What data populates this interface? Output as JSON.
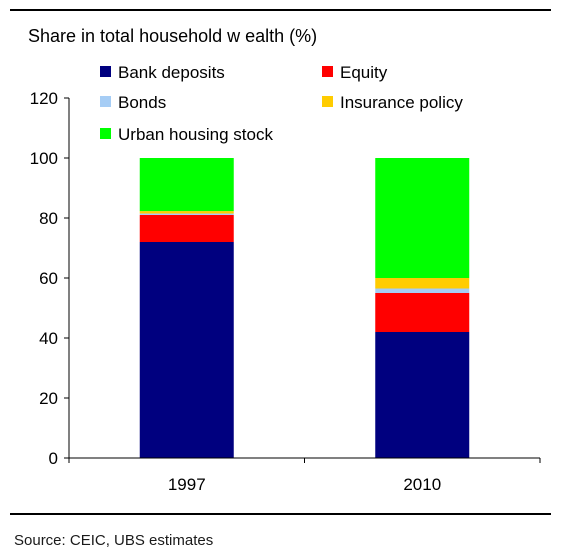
{
  "source_note": "Source: CEIC, UBS estimates",
  "colors": {
    "bank_deposits": "#00007f",
    "equity": "#ff0000",
    "bonds": "#a6cdf5",
    "insurance_policy": "#ffcc00",
    "urban_housing_stock": "#00ff00",
    "axis": "#000000"
  },
  "chart_data": {
    "type": "bar",
    "stacked": true,
    "title": "Share in total household w ealth (%)",
    "categories": [
      "1997",
      "2010"
    ],
    "series": [
      {
        "name": "Bank deposits",
        "color_key": "bank_deposits",
        "values": [
          72,
          42
        ]
      },
      {
        "name": "Equity",
        "color_key": "equity",
        "values": [
          9,
          13
        ]
      },
      {
        "name": "Bonds",
        "color_key": "bonds",
        "values": [
          0.5,
          1.5
        ]
      },
      {
        "name": "Insurance policy",
        "color_key": "insurance_policy",
        "values": [
          0.8,
          3.5
        ]
      },
      {
        "name": "Urban housing stock",
        "color_key": "urban_housing_stock",
        "values": [
          17.7,
          40
        ]
      }
    ],
    "ylim": [
      0,
      120
    ],
    "yticks": [
      0,
      20,
      40,
      60,
      80,
      100,
      120
    ],
    "xlabel": "",
    "ylabel": "",
    "grid": false,
    "legend": "top"
  }
}
